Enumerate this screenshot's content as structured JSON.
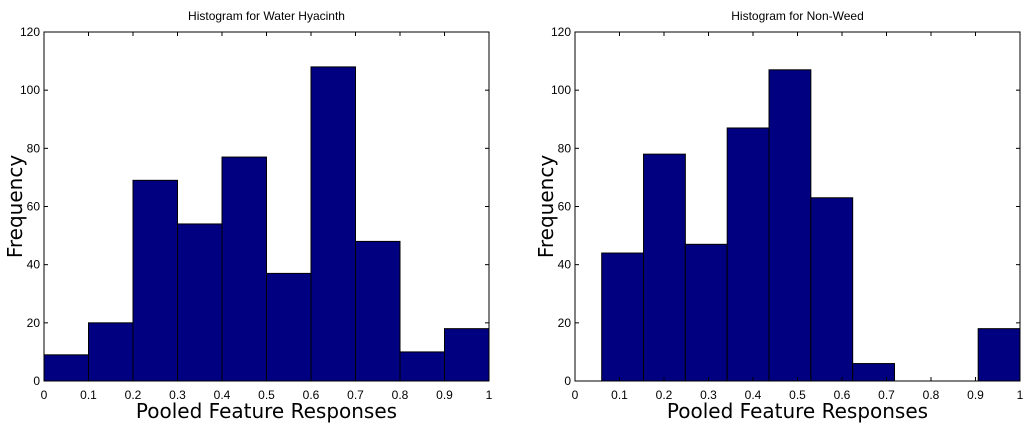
{
  "chart_data": [
    {
      "type": "bar",
      "title": "Histogram for Water Hyacinth",
      "xlabel": "Pooled Feature Responses",
      "ylabel": "Frequency",
      "xlim": [
        0,
        1
      ],
      "ylim": [
        0,
        120
      ],
      "xticks": [
        0,
        0.1,
        0.2,
        0.3,
        0.4,
        0.5,
        0.6,
        0.7,
        0.8,
        0.9,
        1
      ],
      "xtick_labels": [
        "0",
        "0.1",
        "0.2",
        "0.3",
        "0.4",
        "0.5",
        "0.6",
        "0.7",
        "0.8",
        "0.9",
        "1"
      ],
      "yticks": [
        0,
        20,
        40,
        60,
        80,
        100,
        120
      ],
      "ytick_labels": [
        "0",
        "20",
        "40",
        "60",
        "80",
        "100",
        "120"
      ],
      "grid": false,
      "bar_color": "#000080",
      "bin_edges": [
        0,
        0.1,
        0.2,
        0.3,
        0.4,
        0.5,
        0.6,
        0.7,
        0.8,
        0.9,
        1.0
      ],
      "values": [
        9,
        20,
        69,
        54,
        77,
        37,
        108,
        48,
        10,
        18
      ]
    },
    {
      "type": "bar",
      "title": "Histogram for Non-Weed",
      "xlabel": "Pooled Feature Responses",
      "ylabel": "Frequency",
      "xlim": [
        0,
        1
      ],
      "ylim": [
        0,
        120
      ],
      "xticks": [
        0,
        0.1,
        0.2,
        0.3,
        0.4,
        0.5,
        0.6,
        0.7,
        0.8,
        0.9,
        1
      ],
      "xtick_labels": [
        "0",
        "0.1",
        "0.2",
        "0.3",
        "0.4",
        "0.5",
        "0.6",
        "0.7",
        "0.8",
        "0.9",
        "1"
      ],
      "yticks": [
        0,
        20,
        40,
        60,
        80,
        100,
        120
      ],
      "ytick_labels": [
        "0",
        "20",
        "40",
        "60",
        "80",
        "100",
        "120"
      ],
      "grid": false,
      "bar_color": "#000080",
      "bin_edges": [
        0.06,
        0.154,
        0.248,
        0.342,
        0.436,
        0.53,
        0.624,
        0.718,
        0.812,
        0.906,
        1.0
      ],
      "values": [
        44,
        78,
        47,
        87,
        107,
        63,
        6,
        0,
        0,
        18
      ]
    }
  ]
}
